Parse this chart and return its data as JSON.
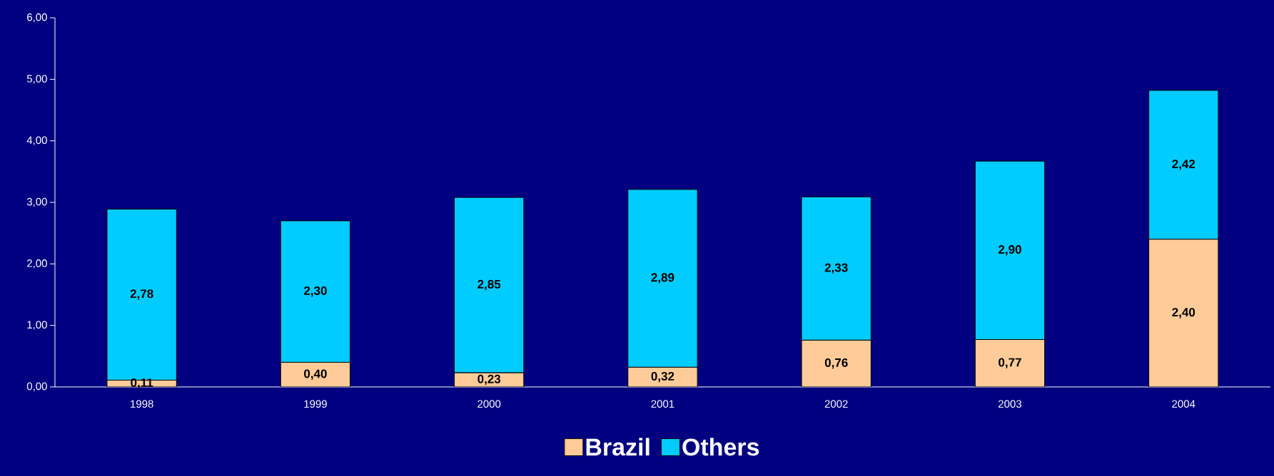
{
  "chart_data": {
    "type": "bar",
    "stacked": true,
    "categories": [
      "1998",
      "1999",
      "2000",
      "2001",
      "2002",
      "2003",
      "2004"
    ],
    "series": [
      {
        "name": "Brazil",
        "color": "#ffcc99",
        "values": [
          0.11,
          0.4,
          0.23,
          0.32,
          0.76,
          0.77,
          2.4
        ],
        "value_labels": [
          "0,11",
          "0,40",
          "0,23",
          "0,32",
          "0,76",
          "0,77",
          "2,40"
        ]
      },
      {
        "name": "Others",
        "color": "#00ccff",
        "values": [
          2.78,
          2.3,
          2.85,
          2.89,
          2.33,
          2.9,
          2.42
        ],
        "value_labels": [
          "2,78",
          "2,30",
          "2,85",
          "2,89",
          "2,33",
          "2,90",
          "2,42"
        ]
      }
    ],
    "ylim": [
      0,
      6
    ],
    "yticks": [
      {
        "value": 0,
        "label": "0,00"
      },
      {
        "value": 1,
        "label": "1,00"
      },
      {
        "value": 2,
        "label": "2,00"
      },
      {
        "value": 3,
        "label": "3,00"
      },
      {
        "value": 4,
        "label": "4,00"
      },
      {
        "value": 5,
        "label": "5,00"
      },
      {
        "value": 6,
        "label": "6,00"
      }
    ],
    "grid": false,
    "legend": "bottom"
  }
}
